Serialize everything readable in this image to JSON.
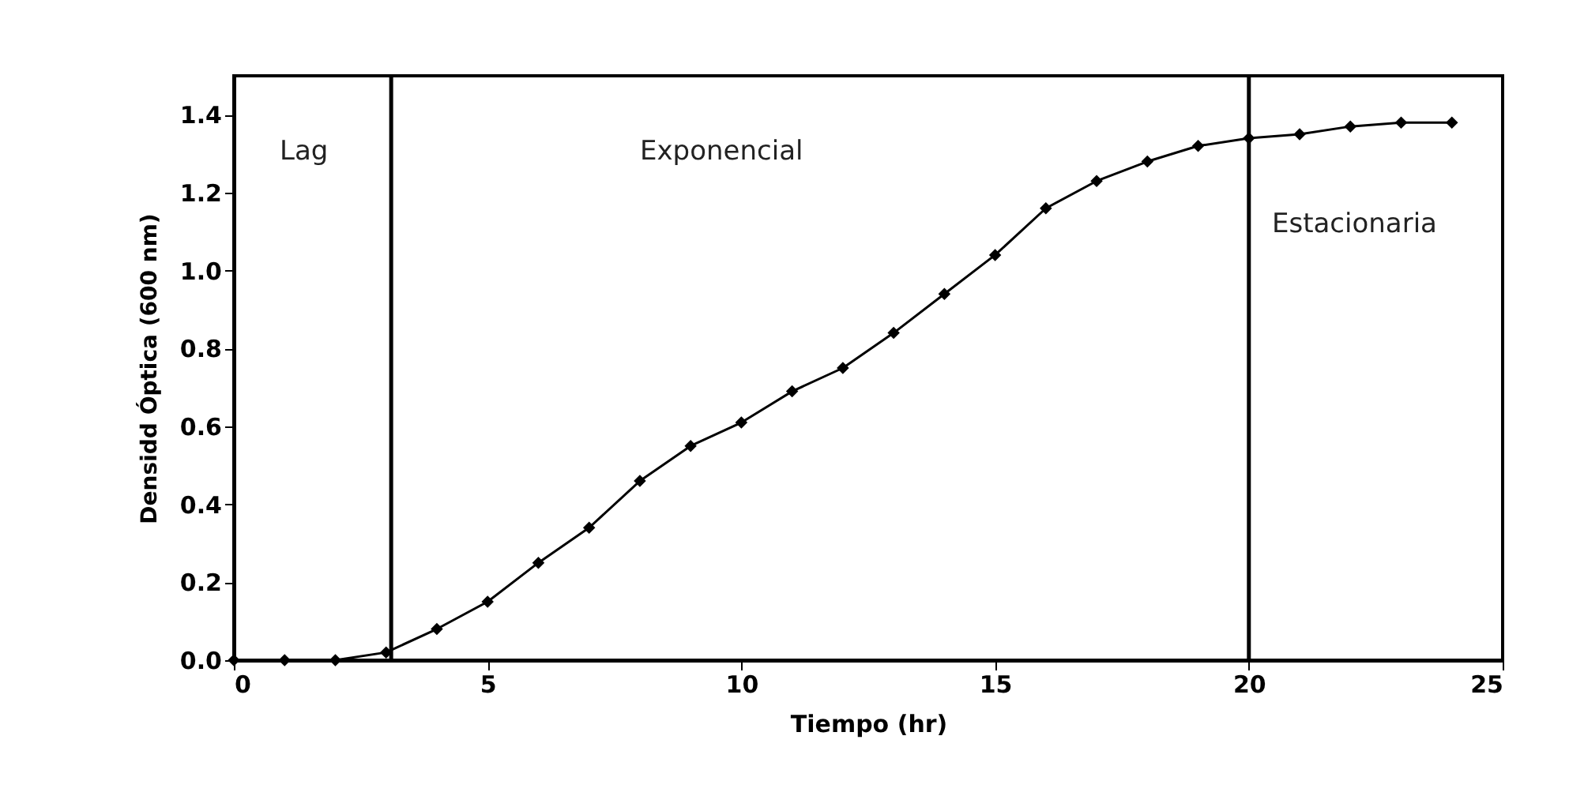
{
  "chart_data": {
    "type": "line",
    "xlabel": "Tiempo (hr)",
    "ylabel": "Densidd Óptica (600 nm)",
    "x": [
      0,
      1,
      2,
      3,
      4,
      5,
      6,
      7,
      8,
      9,
      10,
      11,
      12,
      13,
      14,
      15,
      16,
      17,
      18,
      19,
      20,
      21,
      22,
      23,
      24
    ],
    "series": [
      {
        "color": "#000000",
        "values": [
          0,
          0,
          0,
          0.02,
          0.08,
          0.15,
          0.25,
          0.34,
          0.46,
          0.55,
          0.61,
          0.69,
          0.75,
          0.84,
          0.94,
          1.04,
          1.16,
          1.23,
          1.28,
          1.32,
          1.34,
          1.35,
          1.37,
          1.38,
          1.38
        ]
      }
    ],
    "xlim": [
      0,
      25
    ],
    "xticks": [
      0,
      5,
      10,
      15,
      20,
      25
    ],
    "ylim": [
      0,
      1.5
    ],
    "yticks": [
      {
        "value": 0,
        "label": "0.0"
      },
      {
        "value": 0.2,
        "label": "0.2"
      },
      {
        "value": 0.4,
        "label": "0.4"
      },
      {
        "value": 0.6,
        "label": "0.6"
      },
      {
        "value": 0.8,
        "label": "0.8"
      },
      {
        "value": 1.0,
        "label": "1.0"
      },
      {
        "value": 1.2,
        "label": "1.2"
      },
      {
        "value": 1.4,
        "label": "1.4"
      }
    ],
    "ref_lines": [
      {
        "axis": "x",
        "value": 3.1,
        "color": "#000000"
      },
      {
        "axis": "x",
        "value": 20,
        "color": "#000000"
      }
    ],
    "annotations": [
      "Lag",
      "Exponencial",
      "Estacionaria"
    ],
    "marker": "diamond",
    "line_style": "solid",
    "grid": false,
    "legend": false
  }
}
